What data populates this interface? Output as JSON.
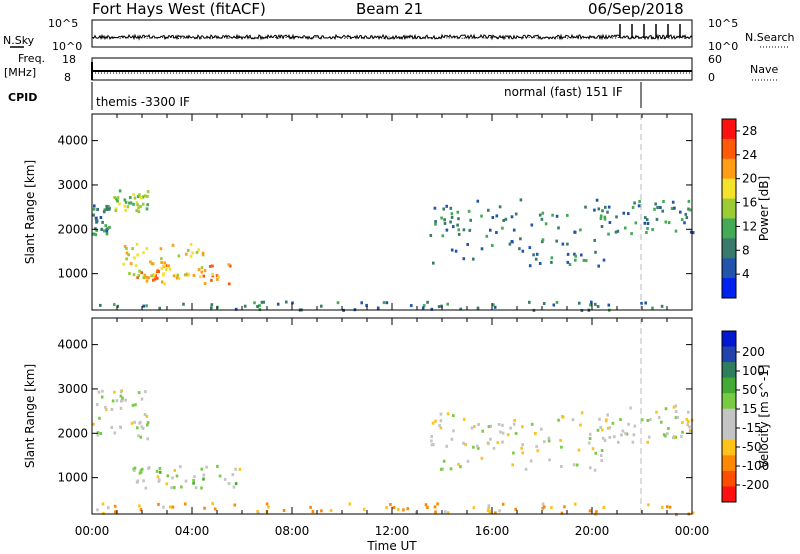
{
  "header": {
    "station": "Fort Hays West (fitACF)",
    "beam": "Beam 21",
    "date": "06/Sep/2018"
  },
  "colors": {
    "power_scale": [
      "#0022ee",
      "#2255aa",
      "#3a7a6a",
      "#44aa55",
      "#9ccc33",
      "#f5e22a",
      "#ff9e16",
      "#ff5a0a",
      "#ff1111"
    ],
    "velocity_scale": [
      "#ff1111",
      "#ff4d00",
      "#ff8800",
      "#ffc21a",
      "#c4c4c4",
      "#c4c4c4",
      "#77cc44",
      "#44aa33",
      "#2e7e5e",
      "#2244aa",
      "#0018d0"
    ]
  },
  "labels": {
    "nsky": "N.Sky",
    "nsky_ticks": [
      "10^5",
      "10^0"
    ],
    "nsearch": "N.Search",
    "nsearch_ticks": [
      "10^5",
      "10^0"
    ],
    "freq": "Freq.",
    "freq_unit": "[MHz]",
    "freq_ticks": [
      "18",
      "8"
    ],
    "nave": "Nave",
    "nave_ticks": [
      "60",
      "0"
    ],
    "cpid": "CPID",
    "cpid_left": "themis -3300 IF",
    "cpid_right": "normal (fast) 151 IF",
    "xlabel": "Time UT"
  },
  "chart_data": [
    {
      "type": "heatmap",
      "title": "Power",
      "ylabel": "Slant Range [km]",
      "y_ticks": [
        1000,
        2000,
        3000,
        4000
      ],
      "ylim": [
        180,
        4600
      ],
      "x_ticks": [
        "00:00",
        "04:00",
        "08:00",
        "12:00",
        "16:00",
        "20:00",
        "00:00"
      ],
      "xlim_hours": [
        0,
        24
      ],
      "colorbar_label": "Power [dB]",
      "colorbar_ticks": [
        "4",
        "8",
        "12",
        "16",
        "20",
        "24",
        "28"
      ],
      "colorbar_range": [
        0,
        30
      ],
      "scatter_regions": [
        {
          "t": [
            0.0,
            0.7
          ],
          "r": [
            1900,
            2600
          ],
          "level": 9
        },
        {
          "t": [
            0.8,
            2.2
          ],
          "r": [
            2400,
            2900
          ],
          "level": 14
        },
        {
          "t": [
            1.5,
            5.5
          ],
          "r": [
            800,
            1300
          ],
          "level": 22
        },
        {
          "t": [
            1.2,
            4.5
          ],
          "r": [
            900,
            1700
          ],
          "level": 18
        },
        {
          "t": [
            0.0,
            24.0
          ],
          "r": [
            200,
            400
          ],
          "level": 8
        },
        {
          "t": [
            13.5,
            20.5
          ],
          "r": [
            1200,
            2700
          ],
          "level": 8
        },
        {
          "t": [
            20.0,
            24.0
          ],
          "r": [
            1900,
            2700
          ],
          "level": 9
        }
      ]
    },
    {
      "type": "heatmap",
      "title": "Velocity",
      "ylabel": "Slant Range [km]",
      "y_ticks": [
        1000,
        2000,
        3000,
        4000
      ],
      "ylim": [
        180,
        4600
      ],
      "x_ticks": [
        "00:00",
        "04:00",
        "08:00",
        "12:00",
        "16:00",
        "20:00",
        "00:00"
      ],
      "xlim_hours": [
        0,
        24
      ],
      "colorbar_label": "Velocity [m s^-1]",
      "colorbar_ticks": [
        "200",
        "100",
        "50",
        "15",
        "-15",
        "-50",
        "-100",
        "-200"
      ],
      "colorbar_range": [
        -250,
        250
      ],
      "scatter_regions": [
        {
          "t": [
            0.0,
            2.2
          ],
          "r": [
            1900,
            3000
          ],
          "level": 0
        },
        {
          "t": [
            1.5,
            6.0
          ],
          "r": [
            750,
            1300
          ],
          "level": 5
        },
        {
          "t": [
            0.0,
            24.0
          ],
          "r": [
            200,
            450
          ],
          "level": -40
        },
        {
          "t": [
            13.5,
            20.5
          ],
          "r": [
            1200,
            2500
          ],
          "level": 0
        },
        {
          "t": [
            20.0,
            24.0
          ],
          "r": [
            1800,
            2700
          ],
          "level": 0
        }
      ]
    }
  ]
}
